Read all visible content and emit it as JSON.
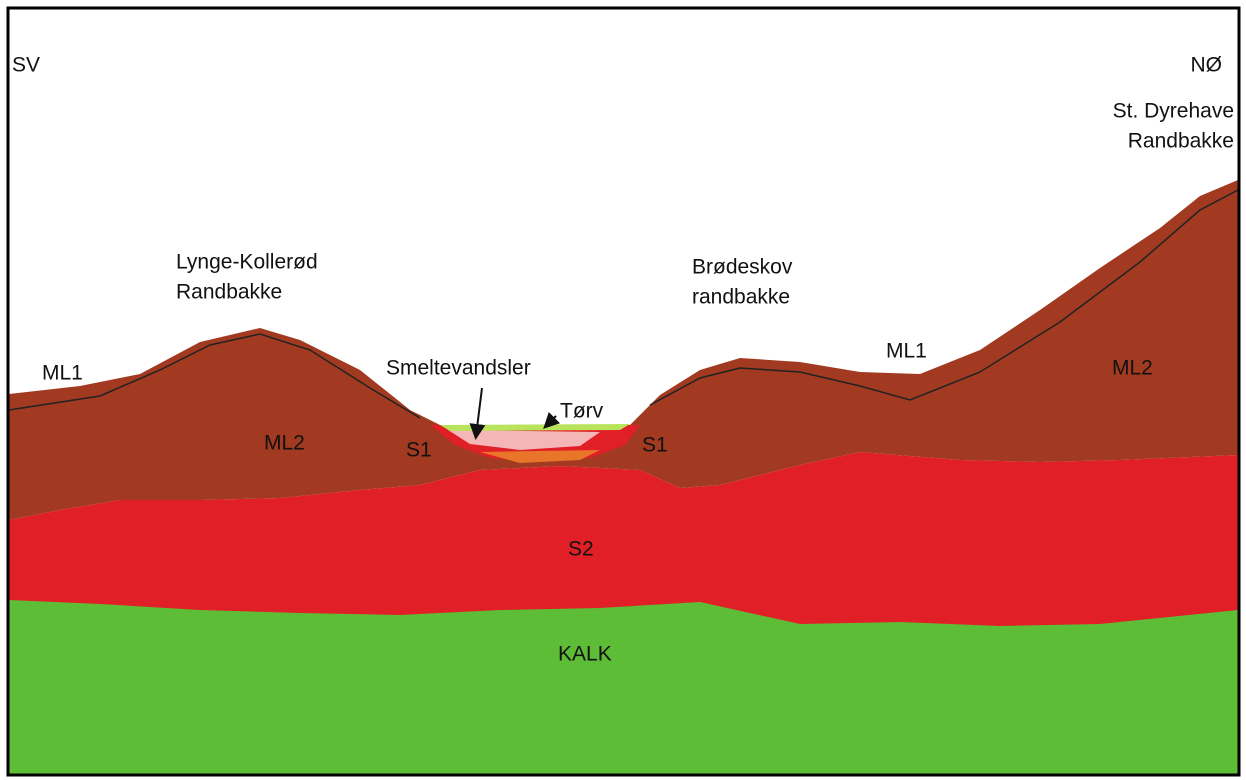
{
  "labels": {
    "sv": "SV",
    "no": "NØ",
    "st_dyrehave": [
      "St. Dyrehave",
      "Randbakke"
    ],
    "lynge": [
      "Lynge-Kollerød",
      "Randbakke"
    ],
    "brodeskov": [
      "Brødeskov",
      "randbakke"
    ],
    "ml1_left": "ML1",
    "ml1_right": "ML1",
    "ml2_left": "ML2",
    "ml2_right": "ML2",
    "smeltevandsler": "Smeltevandsler",
    "torv": "Tørv",
    "s1_left": "S1",
    "s1_right": "S1",
    "s2": "S2",
    "kalk": "KALK"
  }
}
